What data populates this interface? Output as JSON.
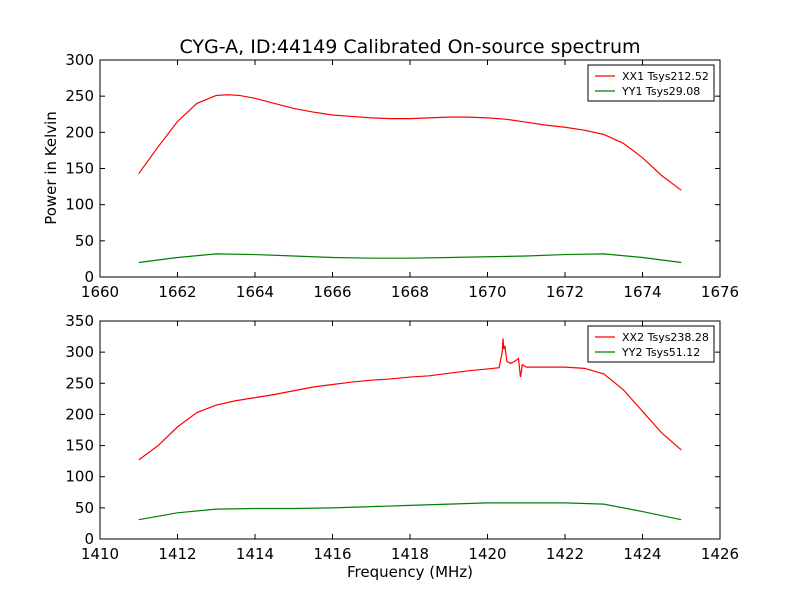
{
  "title": "CYG-A, ID:44149 Calibrated On-source spectrum",
  "colors": {
    "xx": "#ff0000",
    "yy": "#007f00"
  },
  "chart_data": [
    {
      "type": "line",
      "ylabel": "Power in Kelvin",
      "xlabel": "",
      "xlim": [
        1660,
        1676
      ],
      "ylim": [
        0,
        300
      ],
      "xticks": [
        "1660",
        "1662",
        "1664",
        "1666",
        "1668",
        "1670",
        "1672",
        "1674",
        "1676"
      ],
      "yticks": [
        "0",
        "50",
        "100",
        "150",
        "200",
        "250",
        "300"
      ],
      "legend_position": "top-right",
      "grid": false,
      "series": [
        {
          "name": "XX1 Tsys212.52",
          "color": "#ff0000",
          "x": [
            1661.0,
            1661.5,
            1662.0,
            1662.5,
            1663.0,
            1663.3,
            1663.6,
            1664.0,
            1664.5,
            1665.0,
            1665.5,
            1666.0,
            1666.5,
            1667.0,
            1667.5,
            1668.0,
            1668.5,
            1669.0,
            1669.5,
            1670.0,
            1670.5,
            1671.0,
            1671.5,
            1672.0,
            1672.5,
            1673.0,
            1673.5,
            1674.0,
            1674.5,
            1675.0
          ],
          "y": [
            143,
            180,
            215,
            240,
            251,
            252,
            251,
            247,
            240,
            233,
            228,
            224,
            222,
            220,
            219,
            219,
            220,
            221,
            221,
            220,
            218,
            214,
            210,
            207,
            203,
            197,
            185,
            165,
            140,
            120
          ]
        },
        {
          "name": "YY1 Tsys29.08",
          "color": "#007f00",
          "x": [
            1661.0,
            1662.0,
            1663.0,
            1664.0,
            1665.0,
            1666.0,
            1667.0,
            1668.0,
            1669.0,
            1670.0,
            1671.0,
            1672.0,
            1673.0,
            1674.0,
            1675.0
          ],
          "y": [
            20,
            27,
            32,
            31,
            29,
            27,
            26,
            26,
            27,
            28,
            29,
            31,
            32,
            27,
            20
          ]
        }
      ]
    },
    {
      "type": "line",
      "ylabel": "",
      "xlabel": "Frequency (MHz)",
      "xlim": [
        1410,
        1426
      ],
      "ylim": [
        0,
        350
      ],
      "xticks": [
        "1410",
        "1412",
        "1414",
        "1416",
        "1418",
        "1420",
        "1422",
        "1424",
        "1426"
      ],
      "yticks": [
        "0",
        "50",
        "100",
        "150",
        "200",
        "250",
        "300",
        "350"
      ],
      "legend_position": "top-right",
      "grid": false,
      "series": [
        {
          "name": "XX2 Tsys238.28",
          "color": "#ff0000",
          "x": [
            1411.0,
            1411.5,
            1412.0,
            1412.5,
            1413.0,
            1413.5,
            1414.0,
            1414.5,
            1415.0,
            1415.5,
            1416.0,
            1416.5,
            1417.0,
            1417.5,
            1418.0,
            1418.5,
            1419.0,
            1419.5,
            1420.0,
            1420.3,
            1420.38,
            1420.4,
            1420.42,
            1420.45,
            1420.5,
            1420.6,
            1420.7,
            1420.8,
            1420.85,
            1420.9,
            1421.0,
            1421.5,
            1422.0,
            1422.5,
            1423.0,
            1423.5,
            1424.0,
            1424.5,
            1425.0
          ],
          "y": [
            127,
            150,
            180,
            203,
            215,
            222,
            227,
            232,
            238,
            244,
            248,
            252,
            255,
            257,
            260,
            262,
            266,
            270,
            273,
            275,
            300,
            322,
            305,
            310,
            285,
            282,
            285,
            290,
            260,
            280,
            276,
            276,
            276,
            274,
            265,
            240,
            205,
            170,
            143
          ]
        },
        {
          "name": "YY2 Tsys51.12",
          "color": "#007f00",
          "x": [
            1411.0,
            1412.0,
            1413.0,
            1414.0,
            1415.0,
            1416.0,
            1417.0,
            1418.0,
            1419.0,
            1420.0,
            1421.0,
            1422.0,
            1423.0,
            1424.0,
            1425.0
          ],
          "y": [
            31,
            42,
            48,
            49,
            49,
            50,
            52,
            54,
            56,
            58,
            58,
            58,
            56,
            44,
            31
          ]
        }
      ]
    }
  ]
}
